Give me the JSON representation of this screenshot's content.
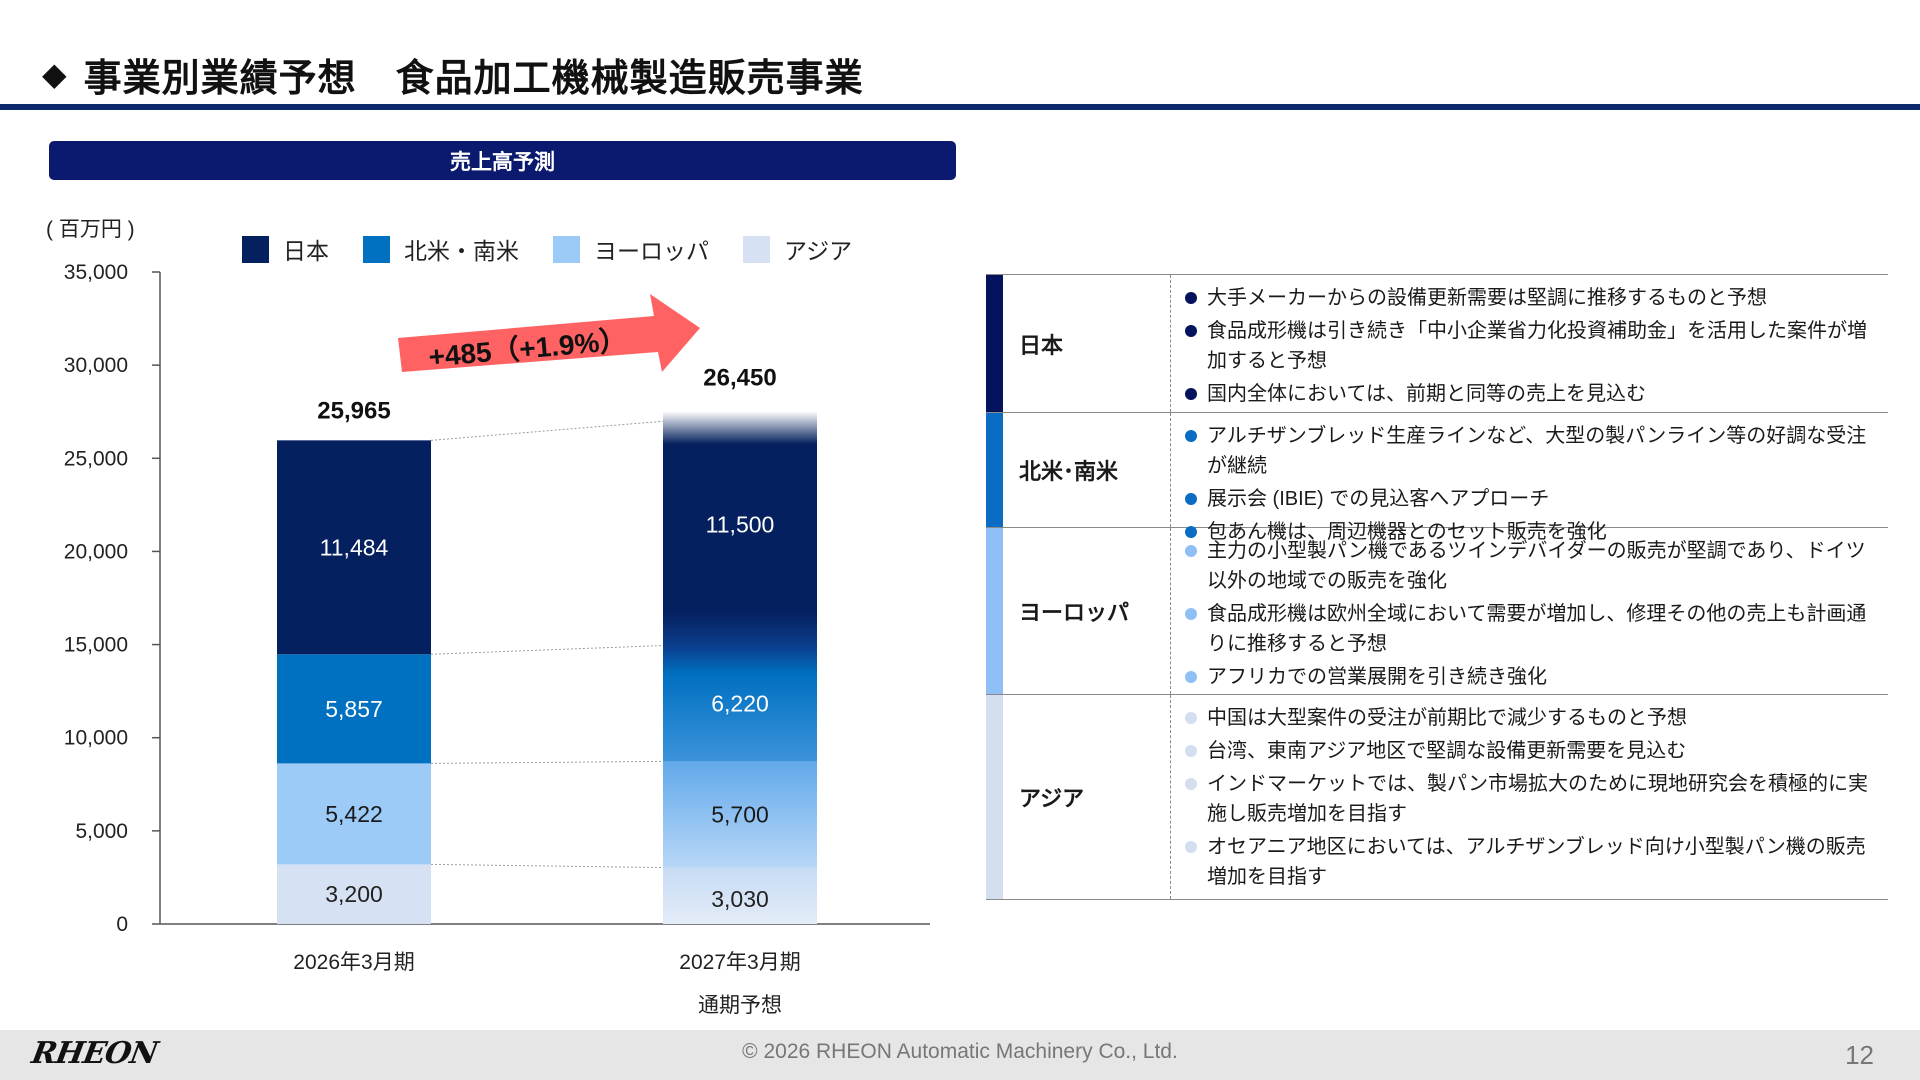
{
  "header": {
    "title": "事業別業績予想　食品加工機械製造販売事業",
    "title_marker": "◆"
  },
  "chart_section": {
    "band_title": "売上高予測",
    "unit_label": "( 百万円 )"
  },
  "chart_data": {
    "type": "bar",
    "stacked": true,
    "categories": [
      "2026年3月期",
      "2027年3月期"
    ],
    "category_sublabels": [
      "",
      "通期予想"
    ],
    "series": [
      {
        "name": "アジア",
        "values": [
          3200,
          3030
        ],
        "color": "#d6e1f3",
        "label_color": "#222222"
      },
      {
        "name": "ヨーロッパ",
        "values": [
          5422,
          5700
        ],
        "color": "#9ccbf7",
        "label_color": "#1a1a1a"
      },
      {
        "name": "北米・南米",
        "values": [
          5857,
          6220
        ],
        "color": "#0070c0",
        "label_color": "#ffffff"
      },
      {
        "name": "日本",
        "values": [
          11484,
          11500
        ],
        "color": "#04205e",
        "label_color": "#ffffff"
      }
    ],
    "value_labels": [
      [
        "3,200",
        "5,422",
        "5,857",
        "11,484"
      ],
      [
        "3,030",
        "5,700",
        "6,220",
        "11,500"
      ]
    ],
    "totals": [
      25965,
      26450
    ],
    "total_labels": [
      "25,965",
      "26,450"
    ],
    "legend_order": [
      "日本",
      "北米・南米",
      "ヨーロッパ",
      "アジア"
    ],
    "ylim": [
      0,
      35000
    ],
    "yticks": [
      0,
      5000,
      10000,
      15000,
      20000,
      25000,
      30000,
      35000
    ],
    "ytick_labels": [
      "0",
      "5,000",
      "10,000",
      "15,000",
      "20,000",
      "25,000",
      "30,000",
      "35,000"
    ],
    "annotation": "+485（+1.9%）",
    "annotation_color": "#ff5a5a",
    "legend_placement": "top",
    "grid": false
  },
  "comments": [
    {
      "region": "日本",
      "color": "#04135e",
      "bullets": [
        "大手メーカーからの設備更新需要は堅調に推移するものと予想",
        "食品成形機は引き続き「中小企業省力化投資補助金」を活用した案件が増加すると予想",
        "国内全体においては、前期と同等の売上を見込む"
      ]
    },
    {
      "region": "北米･南米",
      "color": "#0b6cc4",
      "bullets": [
        "アルチザンブレッド生産ラインなど、大型の製パンライン等の好調な受注が継続",
        "展示会 (IBIE) での見込客へアプローチ",
        "包あん機は、周辺機器とのセット販売を強化"
      ]
    },
    {
      "region": "ヨーロッパ",
      "color": "#8fc0f5",
      "bullets": [
        "主力の小型製パン機であるツインデバイダーの販売が堅調であり、ドイツ以外の地域での販売を強化",
        "食品成形機は欧州全域において需要が増加し、修理その他の売上も計画通りに推移すると予想",
        "アフリカでの営業展開を引き続き強化"
      ]
    },
    {
      "region": "アジア",
      "color": "#d3deef",
      "bullets": [
        "中国は大型案件の受注が前期比で減少するものと予想",
        "台湾、東南アジア地区で堅調な設備更新需要を見込む",
        "インドマーケットでは、製パン市場拡大のために現地研究会を積極的に実施し販売増加を目指す",
        "オセアニア地区においては、アルチザンブレッド向け小型製パン機の販売増加を目指す"
      ]
    }
  ],
  "footer": {
    "logo": "RHEON",
    "copyright": "© 2026 RHEON Automatic Machinery Co., Ltd.",
    "page_number": "12"
  }
}
